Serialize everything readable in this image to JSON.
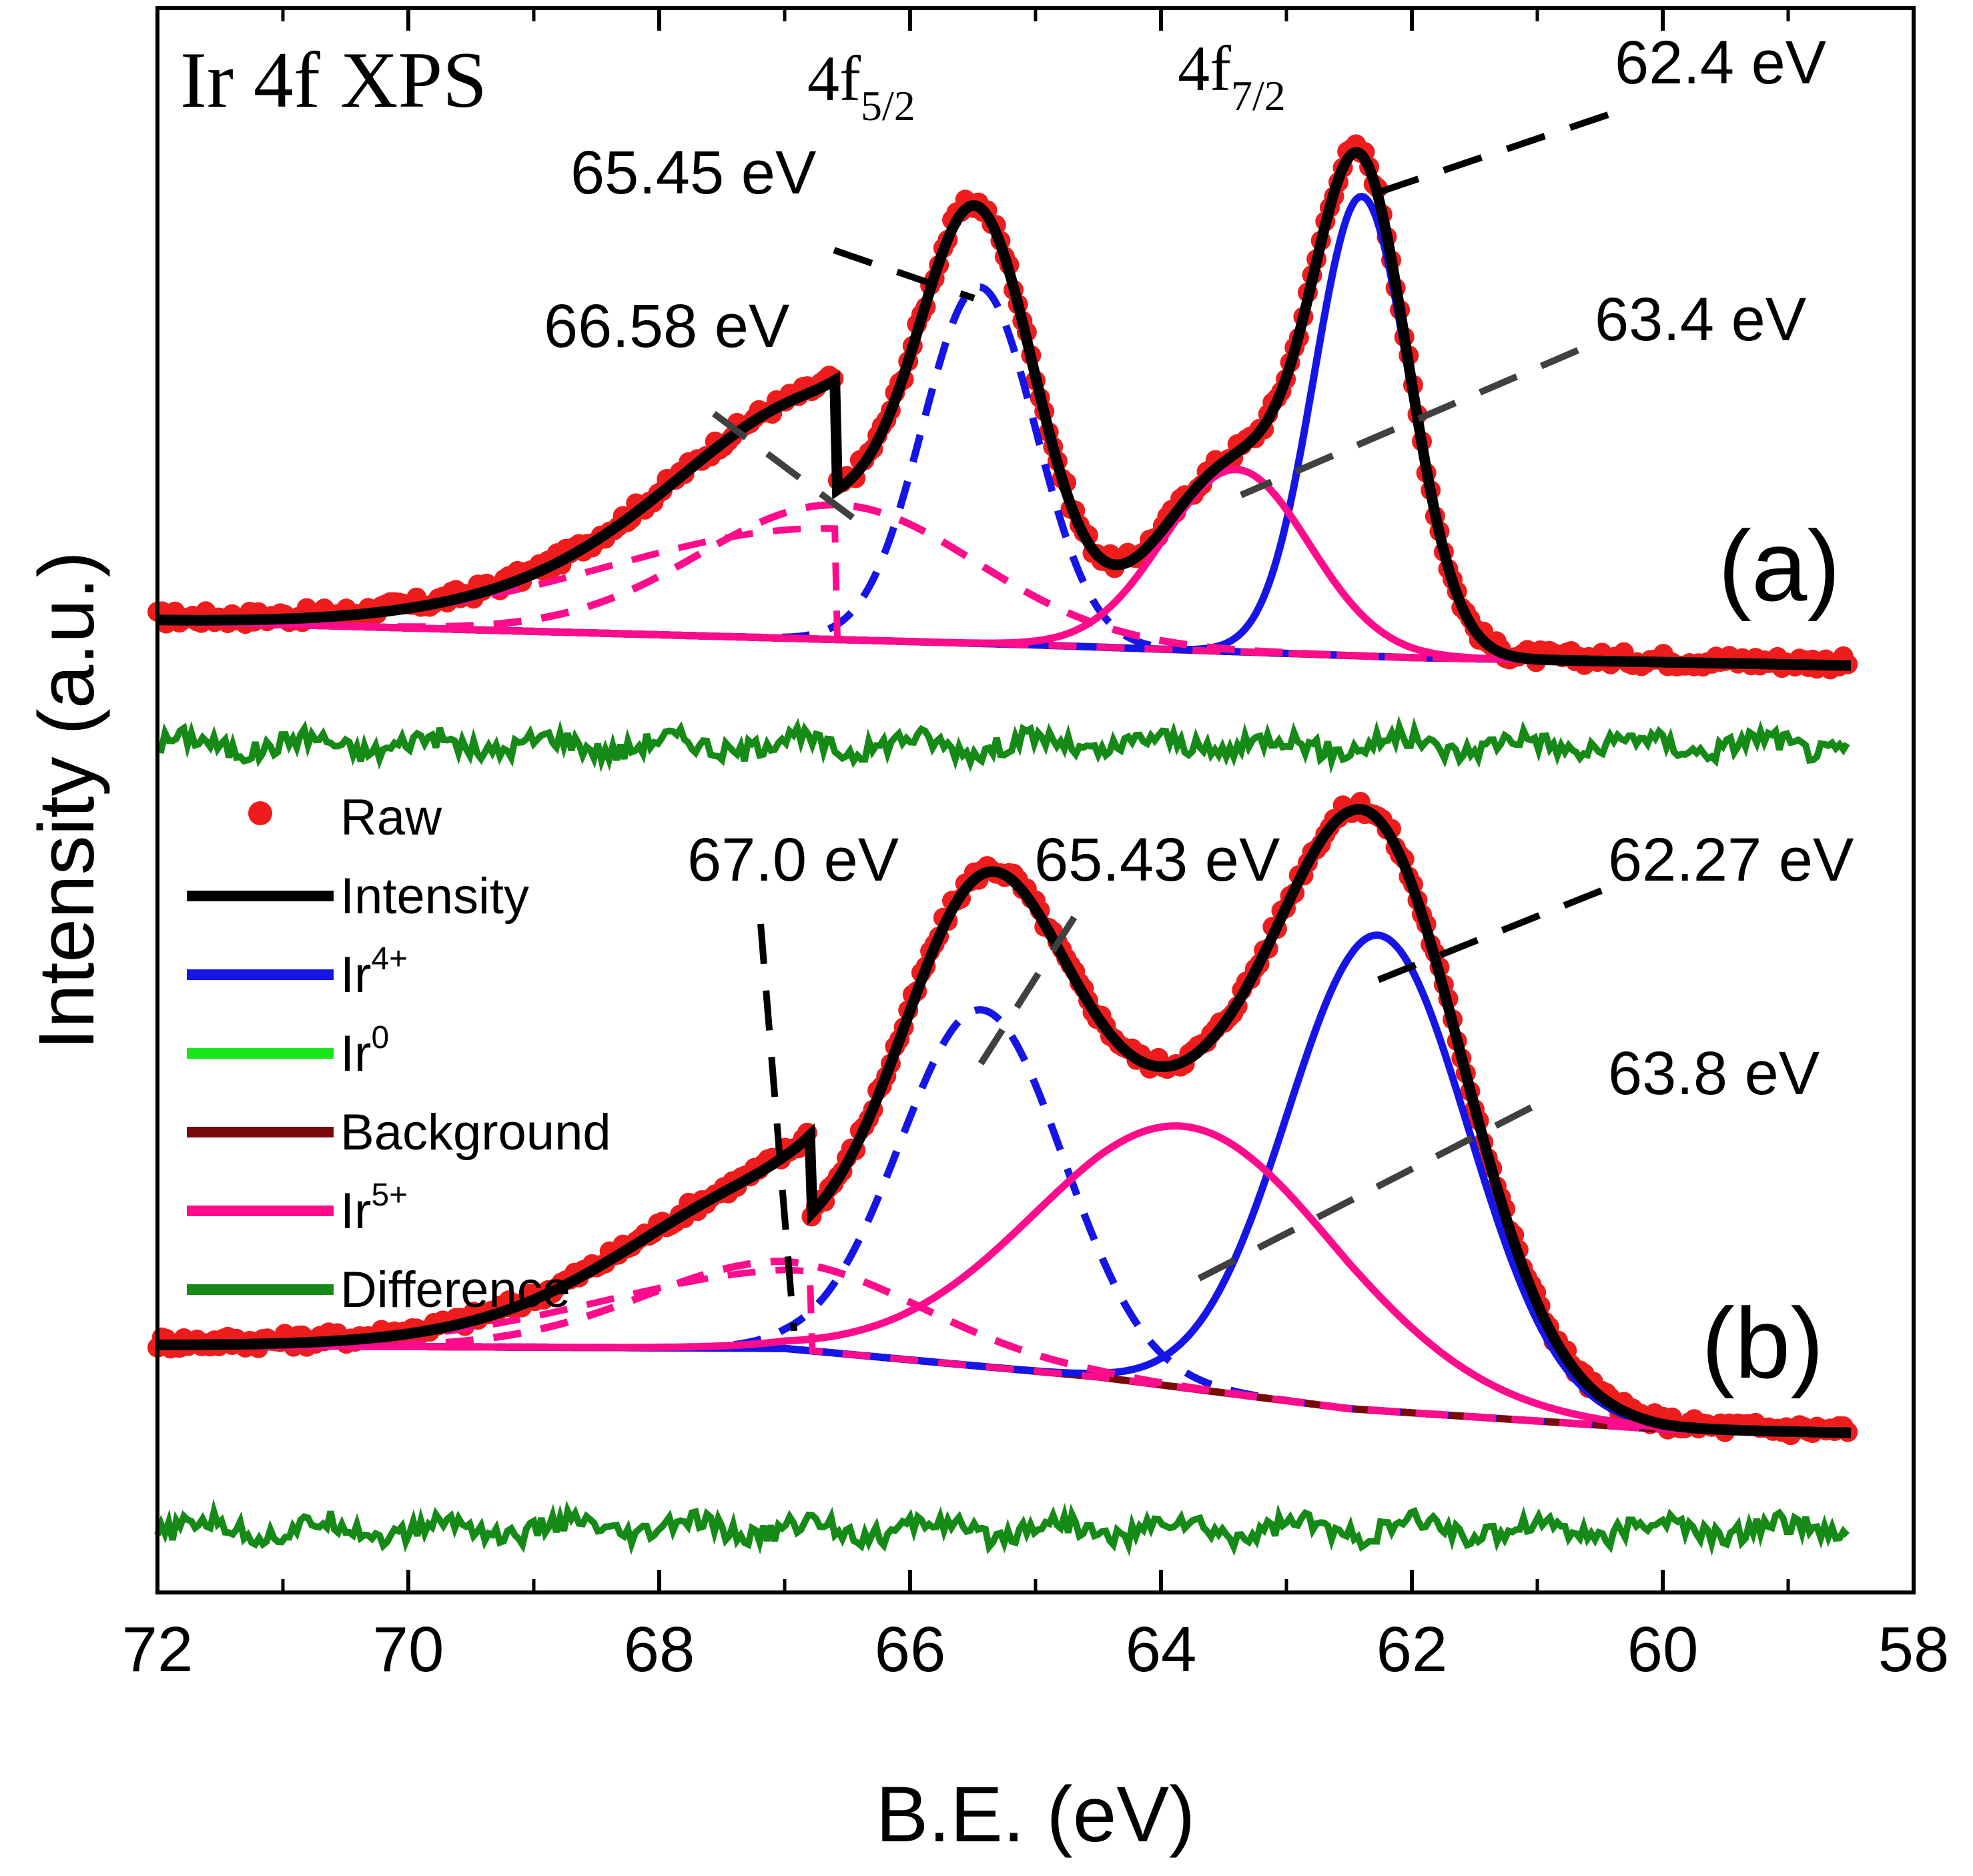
{
  "chart_data": {
    "type": "line",
    "title": "Ir 4f XPS",
    "xlabel": "B.E. (eV)",
    "ylabel": "Intensity (a.u.)",
    "xlim": [
      72,
      58
    ],
    "x_ticks": [
      "72",
      "70",
      "68",
      "66",
      "64",
      "62",
      "60",
      "58"
    ],
    "x_tick_values": [
      72,
      70,
      68,
      66,
      64,
      62,
      60,
      58
    ],
    "ylim": [
      0,
      100
    ],
    "grid": false,
    "legend_position": "left-center",
    "colors": {
      "raw": "#ee1c1c",
      "intensity": "#000000",
      "ir4": "#1515e6",
      "ir0": "#19e619",
      "background": "#7a0a0a",
      "ir5": "#ff0c8c",
      "difference": "#168a16",
      "leader": "#404040"
    },
    "legend": [
      {
        "key": "raw",
        "label": "Raw",
        "sup": ""
      },
      {
        "key": "intensity",
        "label": "Intensity",
        "sup": ""
      },
      {
        "key": "ir4",
        "label": "Ir",
        "sup": "4+"
      },
      {
        "key": "ir0",
        "label": "Ir",
        "sup": "0"
      },
      {
        "key": "background",
        "label": "Background",
        "sup": ""
      },
      {
        "key": "ir5",
        "label": "Ir",
        "sup": "5+"
      },
      {
        "key": "difference",
        "label": "Difference",
        "sup": ""
      }
    ],
    "peak_labels": {
      "f52_main": "4f",
      "f52_sub": "5/2",
      "f72_main": "4f",
      "f72_sub": "7/2"
    },
    "panels": [
      {
        "id": "a",
        "label": "(a)",
        "baseline": [
          [
            72,
            61.3
          ],
          [
            65,
            59.8
          ],
          [
            62,
            59.0
          ],
          [
            58.5,
            58.5
          ]
        ],
        "difference_level": 53.5,
        "components": [
          {
            "key": "ir4",
            "style": "solid",
            "center": 62.4,
            "amp": 29.0,
            "width": 0.38
          },
          {
            "key": "ir4",
            "style": "dashed",
            "center": 65.45,
            "amp": 22.5,
            "width": 0.45
          },
          {
            "key": "ir5",
            "style": "solid",
            "center": 63.4,
            "amp": 11.5,
            "width": 0.58
          },
          {
            "key": "ir5",
            "style": "dashed",
            "center": 66.58,
            "amp": 8.5,
            "width": 1.1
          }
        ],
        "tail": {
          "center": 66.6,
          "amp": 7.0,
          "left_width": 1.8
        },
        "annotations": [
          {
            "text": "65.45 eV",
            "x": 65.45
          },
          {
            "text": "66.58 eV",
            "x": 66.58
          },
          {
            "text": "62.4 eV",
            "x": 62.4
          },
          {
            "text": "63.4 eV",
            "x": 63.4
          }
        ]
      },
      {
        "id": "b",
        "label": "(b)",
        "baseline": [
          [
            72,
            15.6
          ],
          [
            67,
            15.4
          ],
          [
            64.5,
            13.6
          ],
          [
            62.5,
            11.6
          ],
          [
            60,
            10.3
          ],
          [
            58,
            10.0
          ]
        ],
        "difference_level": 4.0,
        "components": [
          {
            "key": "ir4",
            "style": "solid",
            "center": 62.27,
            "amp": 30.0,
            "width": 0.72
          },
          {
            "key": "ir4",
            "style": "dashed",
            "center": 65.43,
            "amp": 22.5,
            "width": 0.65
          },
          {
            "key": "ir5",
            "style": "solid",
            "center": 63.8,
            "amp": 16.5,
            "width": 1.2
          },
          {
            "key": "ir5",
            "style": "dashed",
            "center": 67.0,
            "amp": 5.5,
            "width": 1.1
          }
        ],
        "tail": {
          "center": 66.8,
          "amp": 5.0,
          "left_width": 1.6
        },
        "annotations": [
          {
            "text": "67.0 eV",
            "x": 67.0
          },
          {
            "text": "65.43 eV",
            "x": 65.43
          },
          {
            "text": "62.27 eV",
            "x": 62.27
          },
          {
            "text": "63.8 eV",
            "x": 63.8
          }
        ]
      }
    ]
  }
}
